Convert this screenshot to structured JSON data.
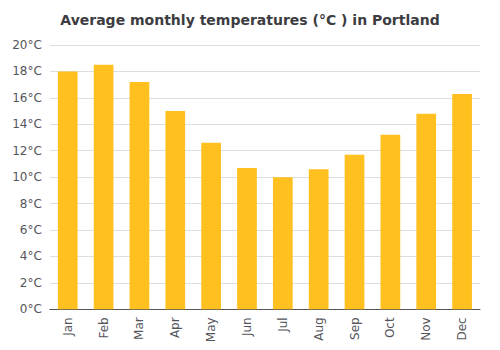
{
  "chart_data": {
    "type": "bar",
    "title": "Average monthly temperatures (°C ) in Portland",
    "categories": [
      "Jan",
      "Feb",
      "Mar",
      "Apr",
      "May",
      "Jun",
      "Jul",
      "Aug",
      "Sep",
      "Oct",
      "Nov",
      "Dec"
    ],
    "values": [
      18.0,
      18.5,
      17.2,
      15.0,
      12.6,
      10.7,
      10.0,
      10.6,
      11.7,
      13.2,
      14.8,
      16.3
    ],
    "color": "#FFC020",
    "ylim": [
      0,
      20
    ],
    "yticks": [
      {
        "value": 0,
        "label": "0°C"
      },
      {
        "value": 2,
        "label": "2°C"
      },
      {
        "value": 4,
        "label": "4°C"
      },
      {
        "value": 6,
        "label": "6°C"
      },
      {
        "value": 8,
        "label": "8°C"
      },
      {
        "value": 10,
        "label": "10°C"
      },
      {
        "value": 12,
        "label": "12°C"
      },
      {
        "value": 14,
        "label": "14°C"
      },
      {
        "value": 16,
        "label": "16°C"
      },
      {
        "value": 18,
        "label": "18°C"
      },
      {
        "value": 20,
        "label": "20°C"
      }
    ],
    "grid": true
  }
}
